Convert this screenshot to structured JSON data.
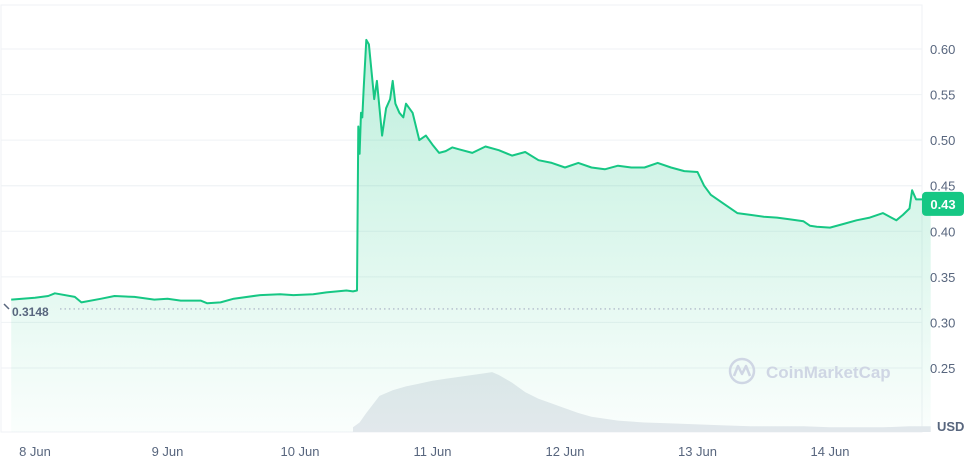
{
  "chart_data": {
    "type": "area",
    "x_ticks": [
      "8 Jun",
      "9 Jun",
      "10 Jun",
      "11 Jun",
      "12 Jun",
      "13 Jun",
      "14 Jun"
    ],
    "y_ticks": [
      "0.60",
      "0.55",
      "0.50",
      "0.45",
      "0.40",
      "0.35",
      "0.30",
      "0.25"
    ],
    "ylim": [
      0.2,
      0.65
    ],
    "currency": "USD",
    "start_value": 0.3148,
    "start_label": "0.3148",
    "current_value": 0.43,
    "current_label": "0.43",
    "grid": true,
    "watermark": "CoinMarketCap",
    "colors": {
      "line": "#16c784",
      "badge": "#16c784",
      "grid": "#eff2f5",
      "volume": "#e6e9ee"
    },
    "series": [
      {
        "x": [
          7.82,
          8.0,
          8.1,
          8.15,
          8.3,
          8.35,
          8.5,
          8.6,
          8.75,
          8.9,
          9.0,
          9.1,
          9.25,
          9.3,
          9.4,
          9.5,
          9.7,
          9.85,
          9.95,
          10.1,
          10.2,
          10.35,
          10.4,
          10.43,
          10.44,
          10.45,
          10.46,
          10.47,
          10.48,
          10.5,
          10.52,
          10.55,
          10.56,
          10.58,
          10.6,
          10.62,
          10.65,
          10.68,
          10.7,
          10.72,
          10.75,
          10.78,
          10.8,
          10.85,
          10.9,
          10.95,
          11.0,
          11.05,
          11.1,
          11.15,
          11.2,
          11.3,
          11.4,
          11.5,
          11.6,
          11.7,
          11.8,
          11.9,
          12.0,
          12.1,
          12.2,
          12.3,
          12.4,
          12.5,
          12.6,
          12.7,
          12.8,
          12.9,
          13.0,
          13.05,
          13.1,
          13.2,
          13.3,
          13.4,
          13.5,
          13.6,
          13.7,
          13.8,
          13.85,
          13.9,
          14.0,
          14.1,
          14.2,
          14.3,
          14.4,
          14.5,
          14.55,
          14.6,
          14.62,
          14.65,
          14.7,
          14.76
        ],
        "y": [
          0.325,
          0.327,
          0.329,
          0.332,
          0.328,
          0.322,
          0.326,
          0.329,
          0.328,
          0.325,
          0.326,
          0.324,
          0.324,
          0.321,
          0.322,
          0.326,
          0.33,
          0.331,
          0.33,
          0.331,
          0.333,
          0.335,
          0.334,
          0.335,
          0.515,
          0.485,
          0.53,
          0.525,
          0.555,
          0.61,
          0.605,
          0.56,
          0.545,
          0.565,
          0.535,
          0.505,
          0.535,
          0.545,
          0.565,
          0.54,
          0.53,
          0.525,
          0.54,
          0.53,
          0.5,
          0.505,
          0.495,
          0.486,
          0.488,
          0.492,
          0.49,
          0.486,
          0.493,
          0.489,
          0.483,
          0.487,
          0.478,
          0.475,
          0.47,
          0.475,
          0.47,
          0.468,
          0.472,
          0.47,
          0.47,
          0.475,
          0.47,
          0.466,
          0.465,
          0.45,
          0.44,
          0.43,
          0.42,
          0.418,
          0.416,
          0.415,
          0.413,
          0.411,
          0.406,
          0.405,
          0.404,
          0.408,
          0.412,
          0.415,
          0.42,
          0.412,
          0.418,
          0.425,
          0.445,
          0.435,
          0.435,
          0.43
        ]
      }
    ],
    "volume": {
      "x": [
        10.4,
        10.45,
        10.5,
        10.6,
        10.7,
        10.8,
        10.9,
        11.0,
        11.1,
        11.2,
        11.3,
        11.4,
        11.45,
        11.5,
        11.6,
        11.7,
        11.8,
        11.9,
        12.0,
        12.1,
        12.2,
        12.4,
        12.6,
        12.8,
        13.0,
        13.2,
        13.4,
        13.6,
        13.8,
        14.0,
        14.2,
        14.4,
        14.6,
        14.76
      ],
      "y": [
        0.005,
        0.01,
        0.02,
        0.038,
        0.044,
        0.048,
        0.051,
        0.054,
        0.056,
        0.058,
        0.06,
        0.062,
        0.063,
        0.06,
        0.052,
        0.042,
        0.035,
        0.03,
        0.025,
        0.02,
        0.016,
        0.012,
        0.01,
        0.009,
        0.008,
        0.007,
        0.006,
        0.006,
        0.006,
        0.005,
        0.005,
        0.005,
        0.006,
        0.006
      ]
    }
  }
}
